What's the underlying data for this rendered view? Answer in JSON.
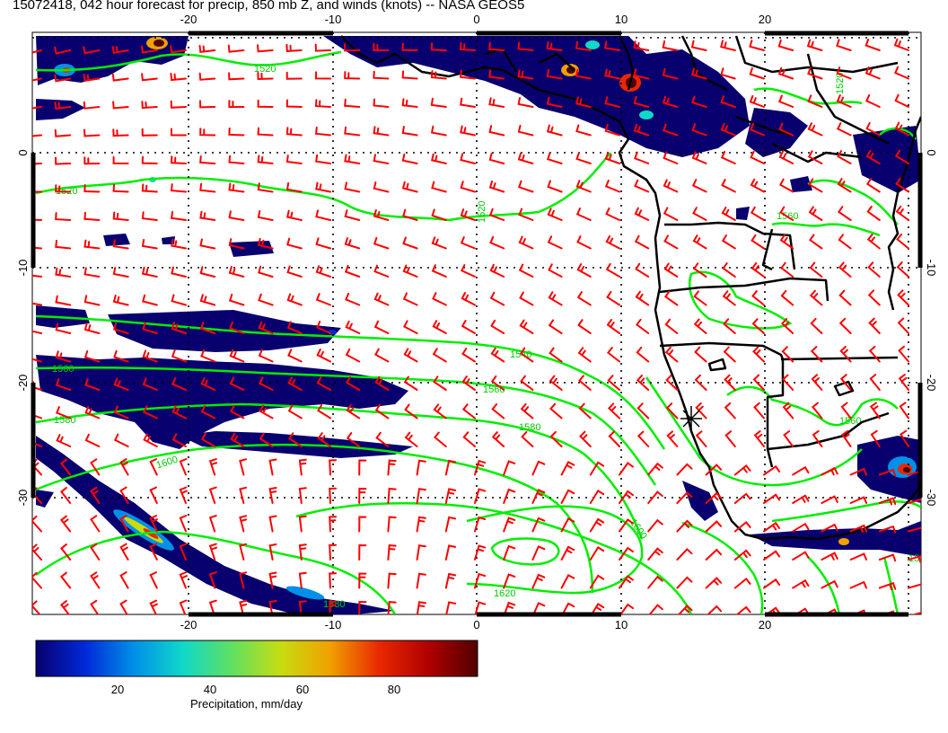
{
  "header": {
    "title": "15072418, 042 hour forecast for precip, 850 mb Z, and winds (knots) -- NASA GEOS5"
  },
  "map": {
    "lon_ticks": [
      "-20",
      "-10",
      "0",
      "10",
      "20"
    ],
    "lat_ticks": [
      "0",
      "-10",
      "-20",
      "-30"
    ],
    "contour_labels": [
      "1520",
      "1520",
      "1520",
      "1520",
      "1540",
      "1560",
      "1560",
      "1580",
      "1580",
      "1600",
      "1600",
      "1620",
      "1580",
      "1560",
      "1560",
      "1520"
    ],
    "colors": {
      "wind_barb": "#ff0000",
      "contour": "#00ee00",
      "coast": "#000000",
      "grid": "#000000"
    }
  },
  "colorbar": {
    "ticks": [
      "20",
      "40",
      "60",
      "80"
    ],
    "label": "Precipitation, mm/day",
    "colors": [
      "#08006e",
      "#0028d8",
      "#0090e8",
      "#10d8c8",
      "#60e060",
      "#c8dc10",
      "#f0a000",
      "#e82800",
      "#b00000",
      "#500000"
    ]
  }
}
